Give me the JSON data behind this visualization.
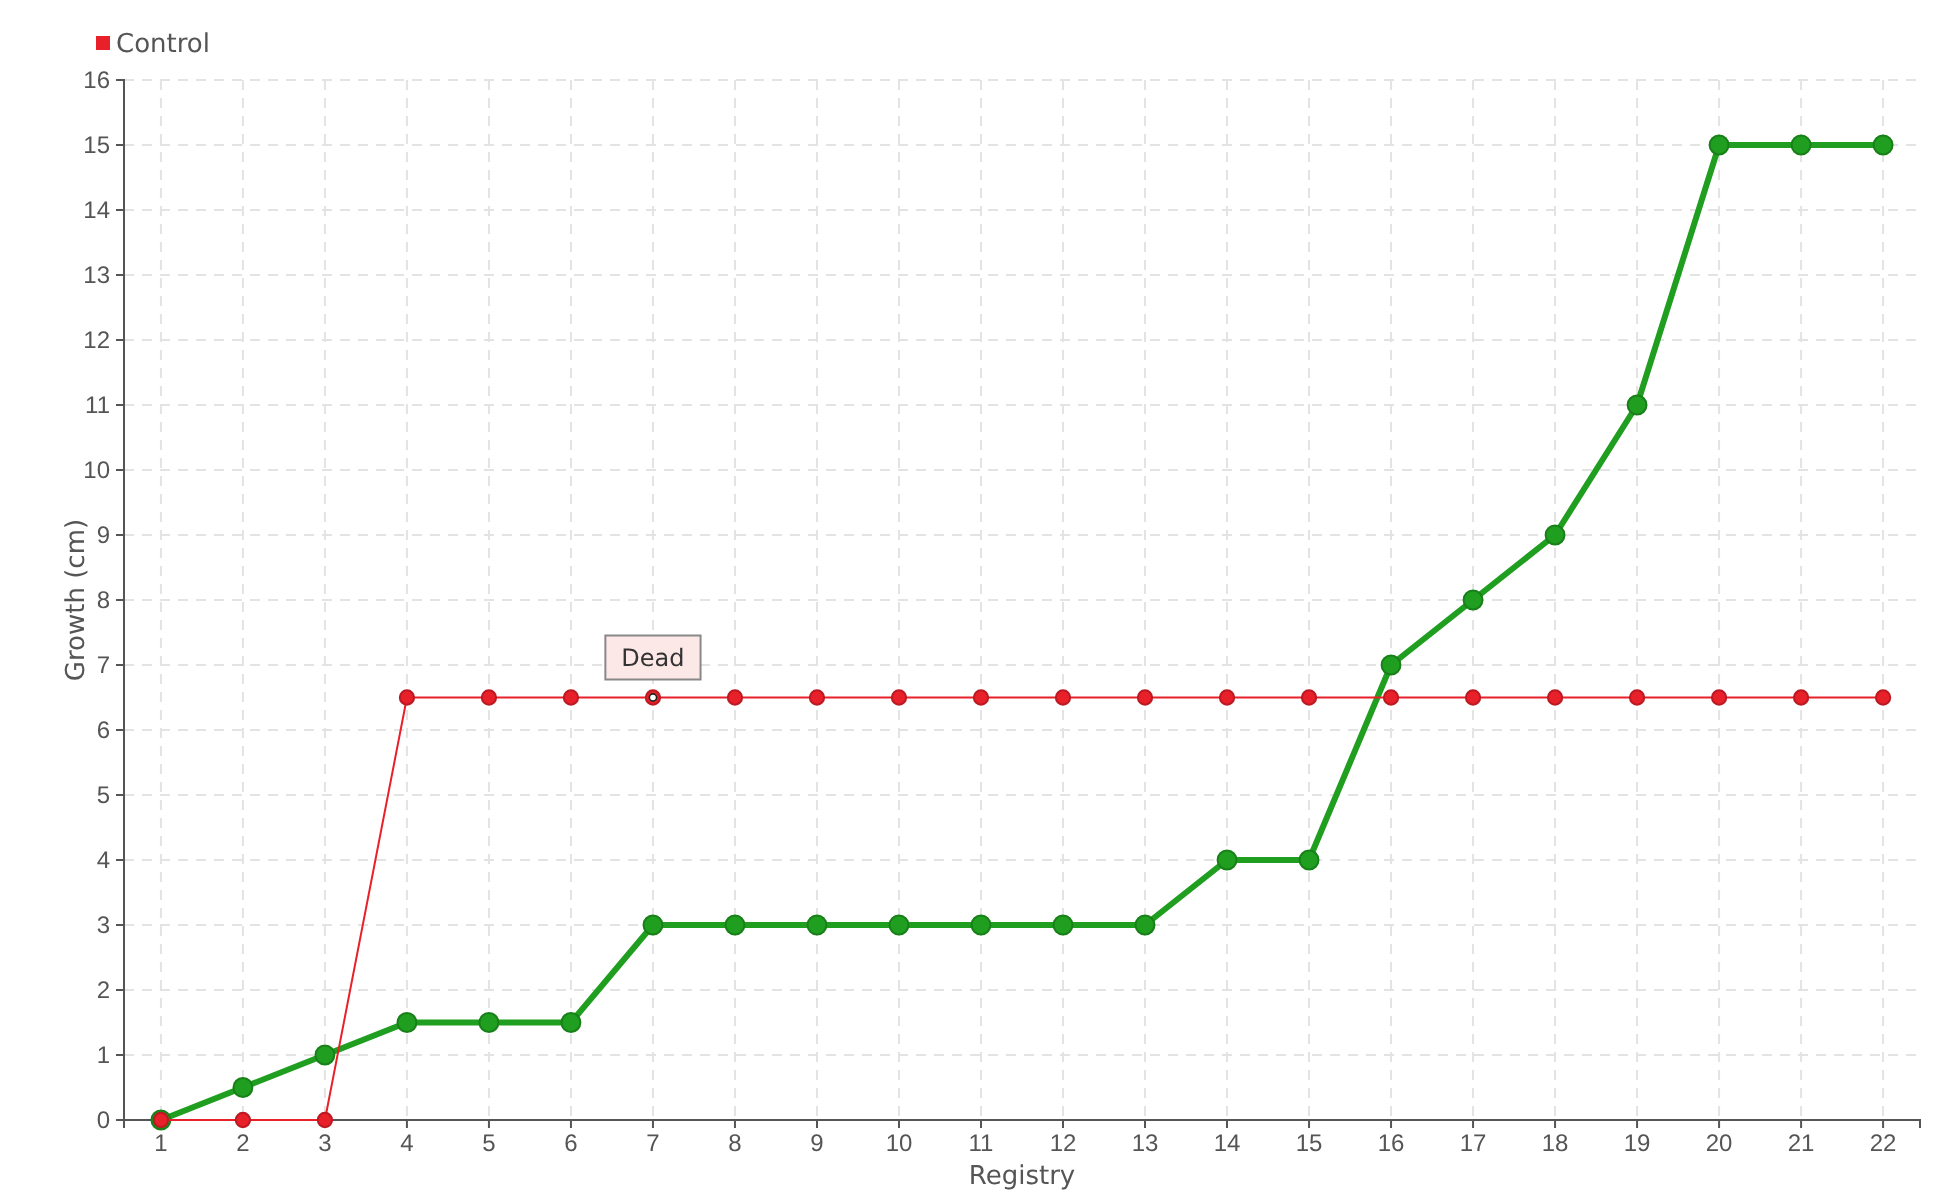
{
  "chart_data": {
    "type": "line",
    "xlabel": "Registry",
    "ylabel": "Growth (cm)",
    "categories": [
      "1",
      "2",
      "3",
      "4",
      "5",
      "6",
      "7",
      "8",
      "9",
      "10",
      "11",
      "12",
      "13",
      "14",
      "15",
      "16",
      "17",
      "18",
      "19",
      "20",
      "21",
      "22"
    ],
    "series": [
      {
        "color": "#1f9e1f",
        "values": [
          0,
          0.5,
          1,
          1.5,
          1.5,
          1.5,
          3,
          3,
          3,
          3,
          3,
          3,
          3,
          4,
          4,
          7,
          8,
          9,
          11,
          15,
          15,
          15
        ]
      },
      {
        "name": "Control",
        "color": "#e8202a",
        "values": [
          0,
          0,
          0,
          6.5,
          6.5,
          6.5,
          6.5,
          6.5,
          6.5,
          6.5,
          6.5,
          6.5,
          6.5,
          6.5,
          6.5,
          6.5,
          6.5,
          6.5,
          6.5,
          6.5,
          6.5,
          6.5
        ]
      }
    ],
    "annotations": [
      {
        "text": "Dead",
        "x": "7",
        "y": 6.5
      }
    ],
    "ylim": [
      0,
      16
    ],
    "yticks": [
      0,
      1,
      2,
      3,
      4,
      5,
      6,
      7,
      8,
      9,
      10,
      11,
      12,
      13,
      14,
      15,
      16
    ],
    "grid": true,
    "legend": "top left",
    "marker": "circle"
  }
}
